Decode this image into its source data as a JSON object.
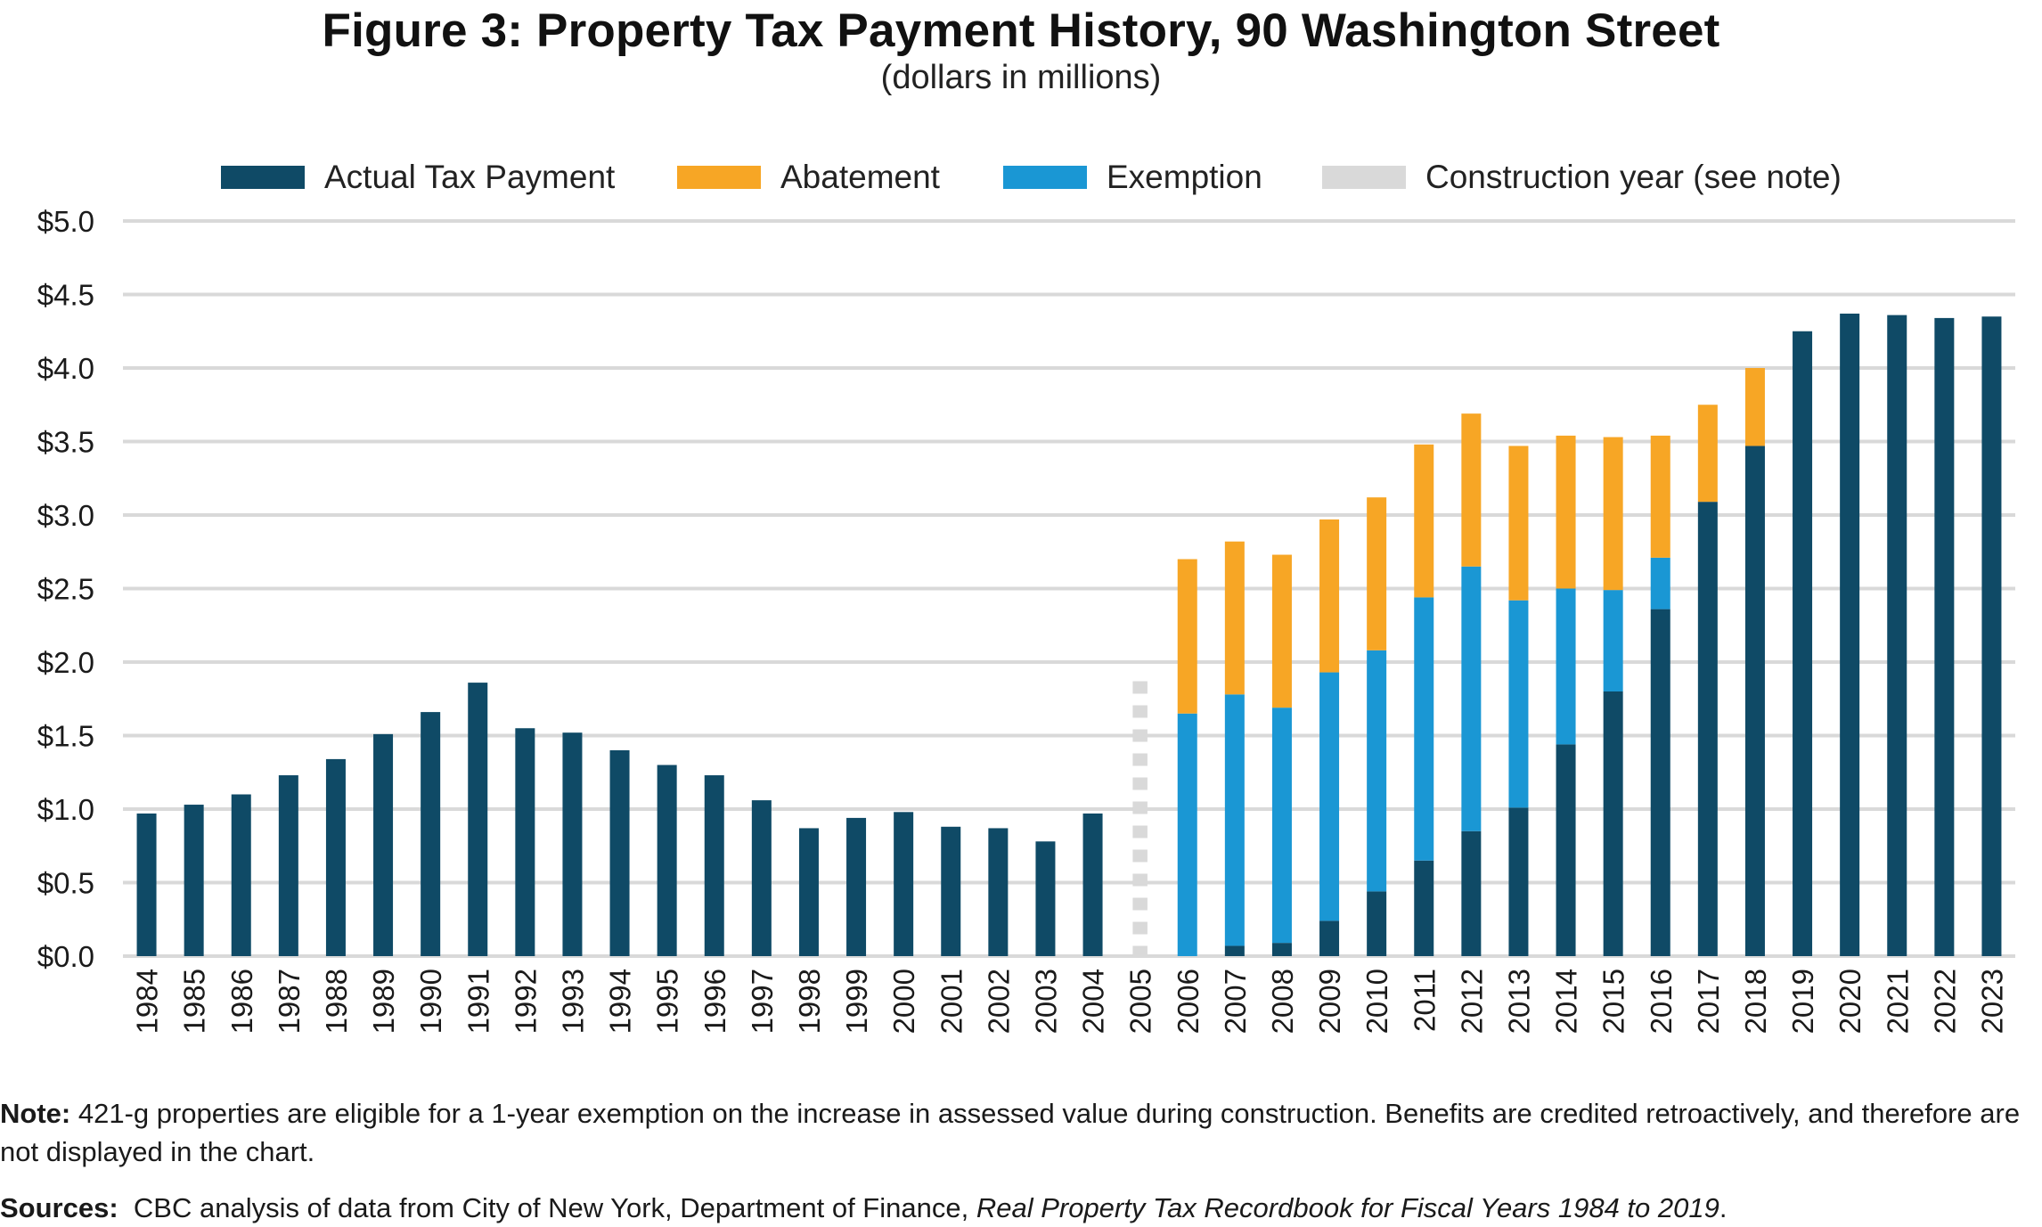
{
  "title": "Figure 3: Property Tax Payment History, 90 Washington Street",
  "subtitle": "(dollars in millions)",
  "note": {
    "label": "Note:",
    "text": "421-g properties are eligible for a 1-year exemption on the increase in assessed value during construction. Benefits are credited retroactively, and therefore are not displayed in the chart."
  },
  "sources": {
    "label": "Sources:",
    "text_before": "CBC analysis of data from City of New York, Department of Finance, ",
    "text_italic": "Real Property Tax Recordbook for Fiscal Years 1984 to 2019",
    "text_after": "."
  },
  "colors": {
    "actual": "#0f4a66",
    "abatement": "#f7a625",
    "exemption": "#1a97d4",
    "construction": "#d9d9d9",
    "grid": "#d9d9d9"
  },
  "chart_data": {
    "type": "bar",
    "stacked": true,
    "grid": true,
    "legend_position": "top",
    "ylim": [
      0,
      5
    ],
    "y_ticks": [
      0,
      0.5,
      1,
      1.5,
      2,
      2.5,
      3,
      3.5,
      4,
      4.5,
      5
    ],
    "y_tick_labels": [
      "$0.0",
      "$0.5",
      "$1.0",
      "$1.5",
      "$2.0",
      "$2.5",
      "$3.0",
      "$3.5",
      "$4.0",
      "$4.5",
      "$5.0"
    ],
    "categories": [
      "1984",
      "1985",
      "1986",
      "1987",
      "1988",
      "1989",
      "1990",
      "1991",
      "1992",
      "1993",
      "1994",
      "1995",
      "1996",
      "1997",
      "1998",
      "1999",
      "2000",
      "2001",
      "2002",
      "2003",
      "2004",
      "2005",
      "2006",
      "2007",
      "2008",
      "2009",
      "2010",
      "2011",
      "2012",
      "2013",
      "2014",
      "2015",
      "2016",
      "2017",
      "2018",
      "2019",
      "2020",
      "2021",
      "2022",
      "2023"
    ],
    "series": [
      {
        "name": "Actual Tax Payment",
        "key": "actual",
        "values": [
          0.97,
          1.03,
          1.1,
          1.23,
          1.34,
          1.51,
          1.66,
          1.86,
          1.55,
          1.52,
          1.4,
          1.3,
          1.23,
          1.06,
          0.87,
          0.94,
          0.98,
          0.88,
          0.87,
          0.78,
          0.97,
          0,
          0,
          0.07,
          0.09,
          0.24,
          0.44,
          0.65,
          0.85,
          1.01,
          1.44,
          1.8,
          2.36,
          3.09,
          3.47,
          4.25,
          4.37,
          4.36,
          4.34,
          4.35
        ]
      },
      {
        "name": "Exemption",
        "key": "exemption",
        "values": [
          0,
          0,
          0,
          0,
          0,
          0,
          0,
          0,
          0,
          0,
          0,
          0,
          0,
          0,
          0,
          0,
          0,
          0,
          0,
          0,
          0,
          0,
          1.65,
          1.71,
          1.6,
          1.69,
          1.64,
          1.79,
          1.8,
          1.41,
          1.06,
          0.69,
          0.35,
          0,
          0,
          0,
          0,
          0,
          0,
          0
        ]
      },
      {
        "name": "Abatement",
        "key": "abatement",
        "values": [
          0,
          0,
          0,
          0,
          0,
          0,
          0,
          0,
          0,
          0,
          0,
          0,
          0,
          0,
          0,
          0,
          0,
          0,
          0,
          0,
          0,
          0,
          1.05,
          1.04,
          1.04,
          1.04,
          1.04,
          1.04,
          1.04,
          1.05,
          1.04,
          1.04,
          0.83,
          0.66,
          0.53,
          0,
          0,
          0,
          0,
          0
        ]
      },
      {
        "name": "Construction year (see note)",
        "key": "construction",
        "values": [
          0,
          0,
          0,
          0,
          0,
          0,
          0,
          0,
          0,
          0,
          0,
          0,
          0,
          0,
          0,
          0,
          0,
          0,
          0,
          0,
          0,
          1.87,
          0,
          0,
          0,
          0,
          0,
          0,
          0,
          0,
          0,
          0,
          0,
          0,
          0,
          0,
          0,
          0,
          0,
          0
        ]
      }
    ],
    "legend": [
      "Actual Tax Payment",
      "Abatement",
      "Exemption",
      "Construction year (see note)"
    ]
  }
}
